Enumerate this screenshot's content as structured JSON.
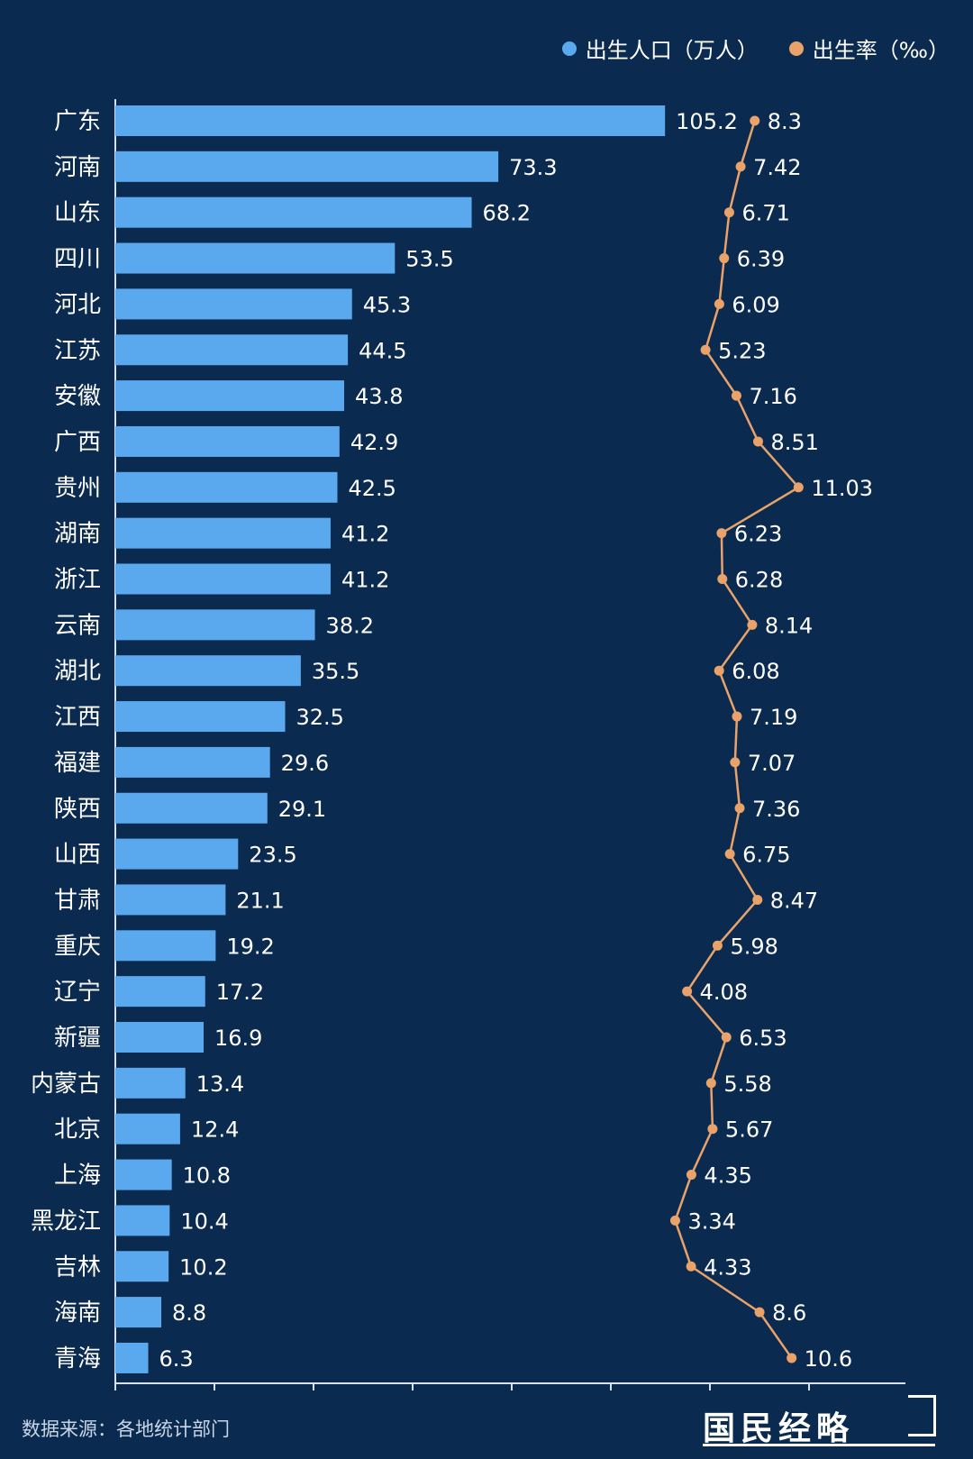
{
  "legend": {
    "birth_population_label": "出生人口（万人）",
    "birth_rate_label": "出生率（‰）"
  },
  "colors": {
    "background": "#0b2a4f",
    "bar": "#5aa9ef",
    "line": "#e9a36a",
    "axis": "#d8e2ef",
    "text": "#ffffff"
  },
  "footer": {
    "source_label": "数据来源：",
    "source_value": "各地统计部门",
    "brand": "国民经略"
  },
  "chart_data": {
    "type": "bar",
    "categories": [
      "广东",
      "河南",
      "山东",
      "四川",
      "河北",
      "江苏",
      "安徽",
      "广西",
      "贵州",
      "湖南",
      "浙江",
      "云南",
      "湖北",
      "江西",
      "福建",
      "陕西",
      "山西",
      "甘肃",
      "重庆",
      "辽宁",
      "新疆",
      "内蒙古",
      "北京",
      "上海",
      "黑龙江",
      "吉林",
      "海南",
      "青海"
    ],
    "series": [
      {
        "name": "出生人口（万人）",
        "type": "bar",
        "values": [
          105.2,
          73.3,
          68.2,
          53.5,
          45.3,
          44.5,
          43.8,
          42.9,
          42.5,
          41.2,
          41.2,
          38.2,
          35.5,
          32.5,
          29.6,
          29.1,
          23.5,
          21.1,
          19.2,
          17.2,
          16.9,
          13.4,
          12.4,
          10.8,
          10.4,
          10.2,
          8.8,
          6.3
        ],
        "labels": [
          "105.2",
          "73.3",
          "68.2",
          "53.5",
          "45.3",
          "44.5",
          "43.8",
          "42.9",
          "42.5",
          "41.2",
          "41.2",
          "38.2",
          "35.5",
          "32.5",
          "29.6",
          "29.1",
          "23.5",
          "21.1",
          "19.2",
          "17.2",
          "16.9",
          "13.4",
          "12.4",
          "10.8",
          "10.4",
          "10.2",
          "8.8",
          "6.3"
        ]
      },
      {
        "name": "出生率（‰）",
        "type": "line",
        "values": [
          8.3,
          7.42,
          6.71,
          6.39,
          6.09,
          5.23,
          7.16,
          8.51,
          11.03,
          6.23,
          6.28,
          8.14,
          6.08,
          7.19,
          7.07,
          7.36,
          6.75,
          8.47,
          5.98,
          4.08,
          6.53,
          5.58,
          5.67,
          4.35,
          3.34,
          4.33,
          8.6,
          10.6
        ],
        "labels": [
          "8.3",
          "7.42",
          "6.71",
          "6.39",
          "6.09",
          "5.23",
          "7.16",
          "8.51",
          "11.03",
          "6.23",
          "6.28",
          "8.14",
          "6.08",
          "7.19",
          "7.07",
          "7.36",
          "6.75",
          "8.47",
          "5.98",
          "4.08",
          "6.53",
          "5.58",
          "5.67",
          "4.35",
          "3.34",
          "4.33",
          "8.6",
          "10.6"
        ]
      }
    ],
    "orientation": "horizontal",
    "legend_position": "top-right",
    "grid": false
  }
}
